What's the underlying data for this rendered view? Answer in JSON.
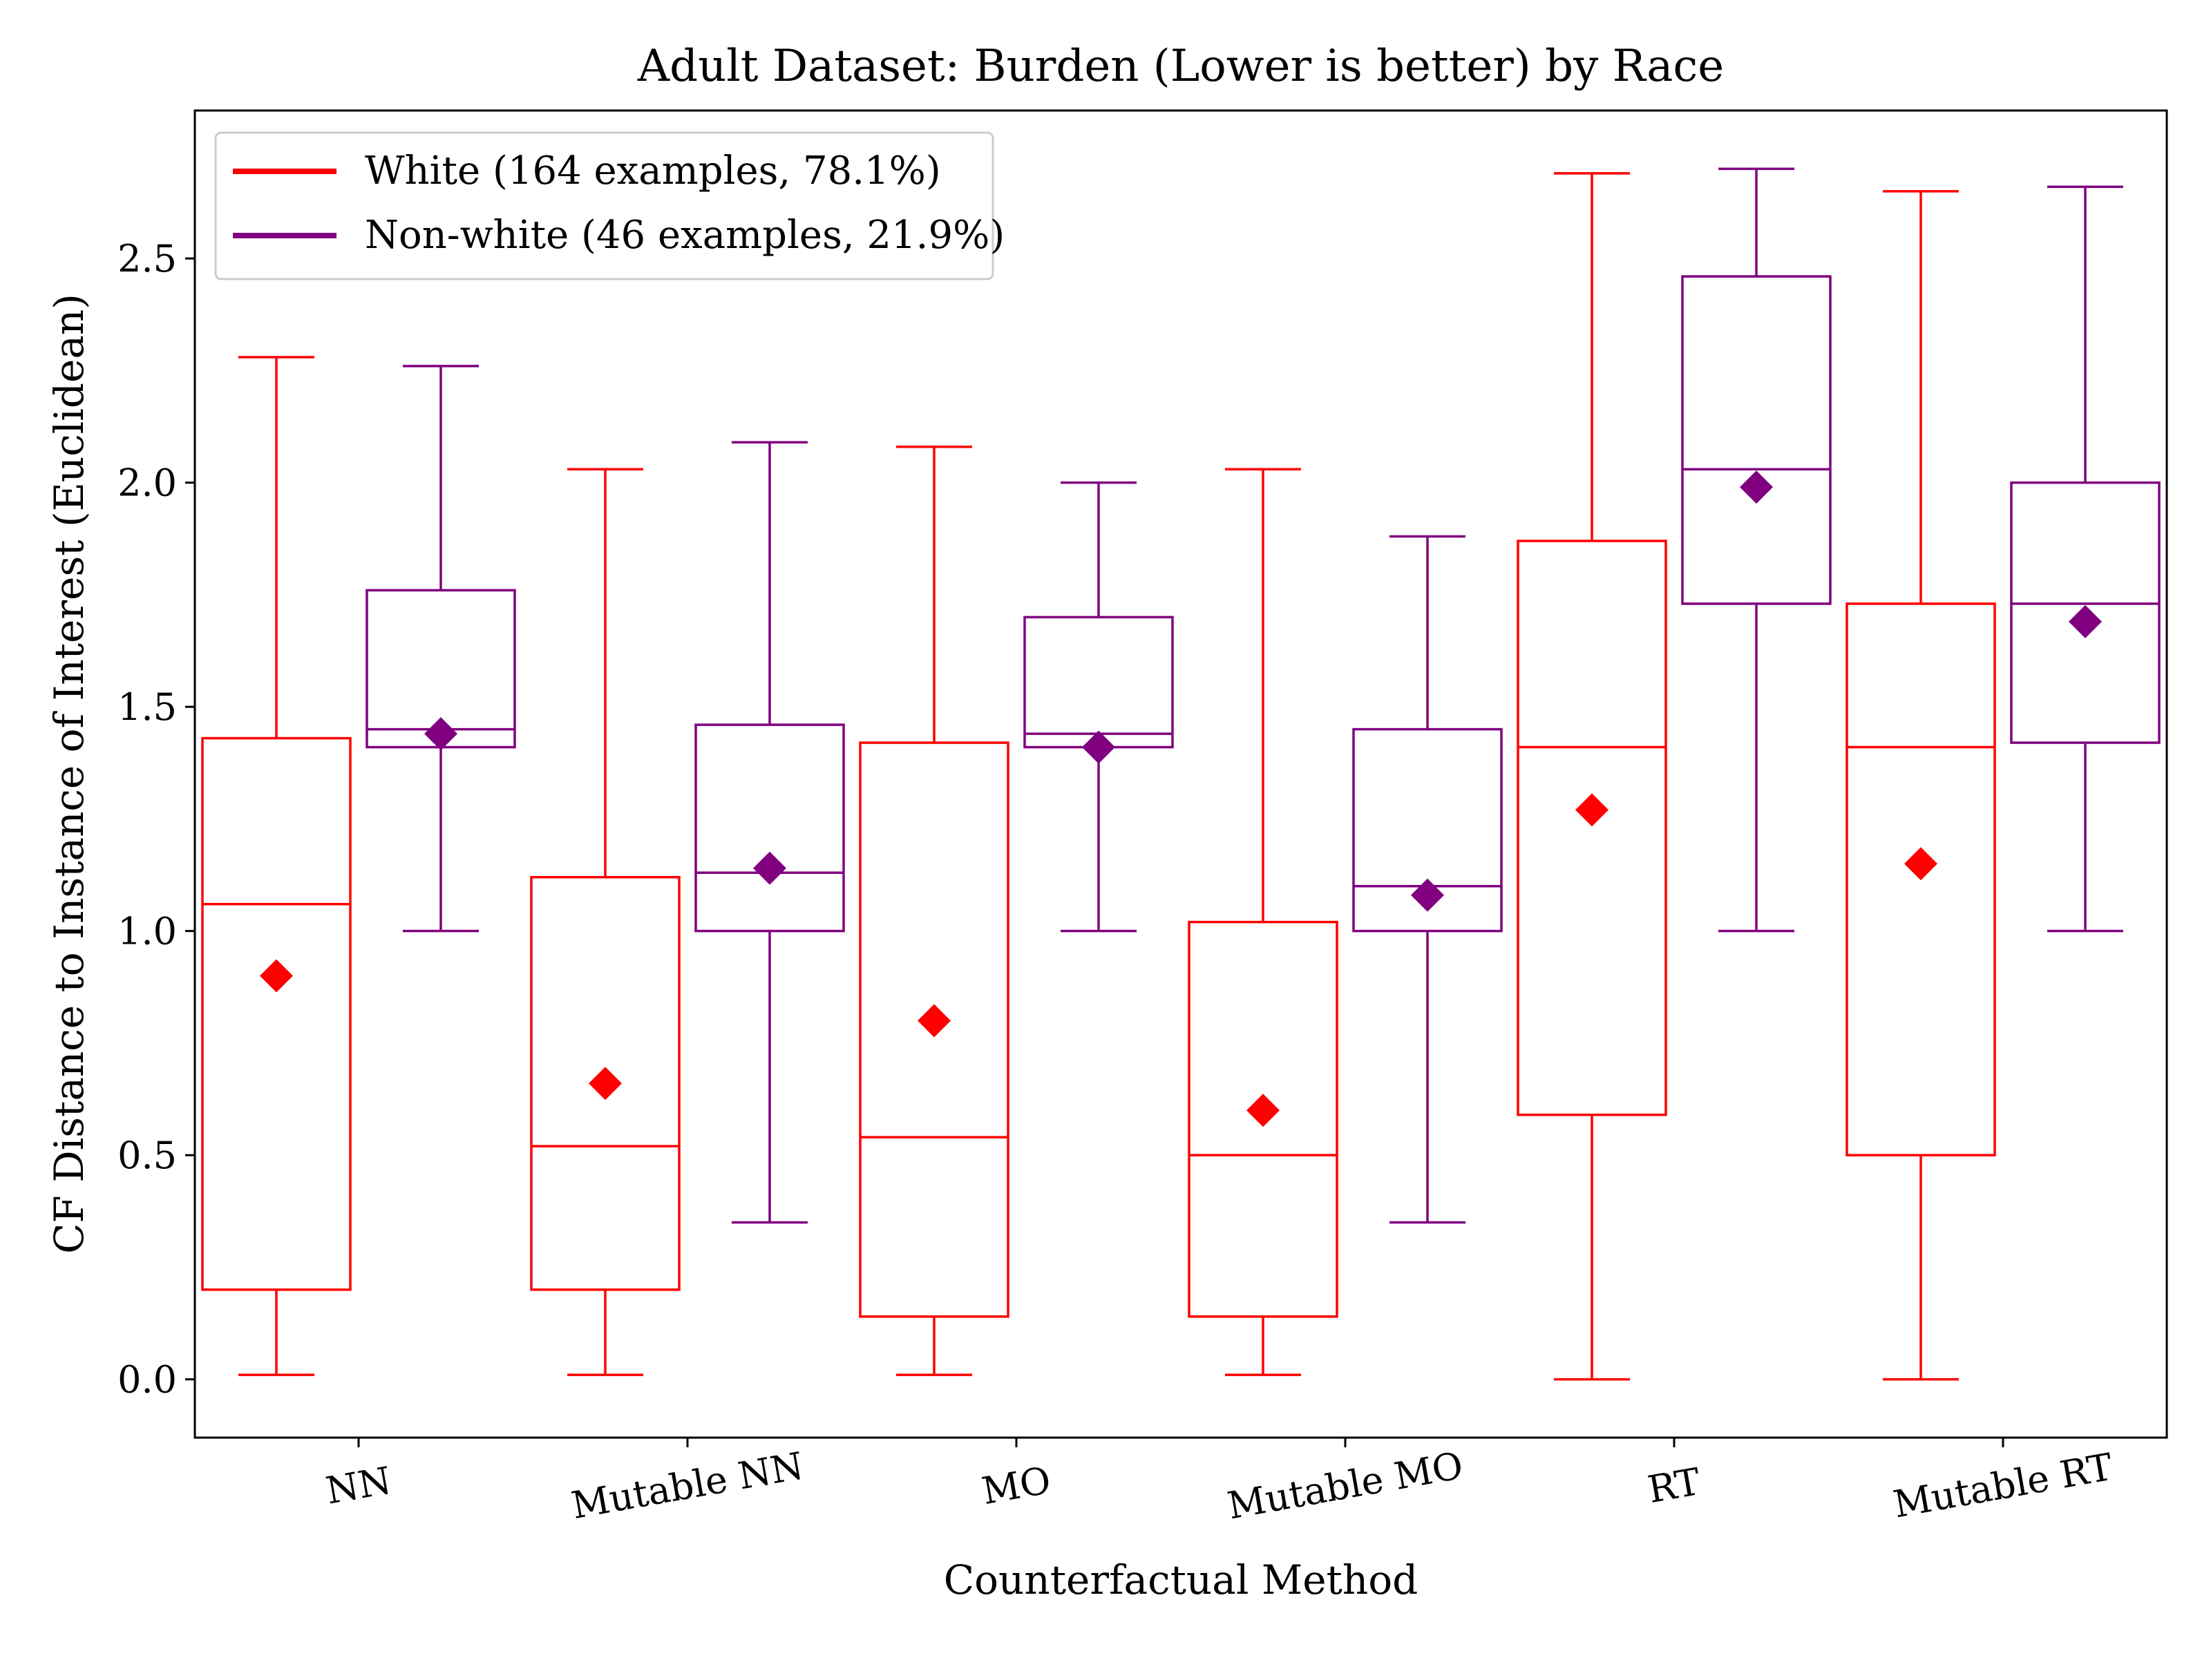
{
  "chart_data": {
    "type": "box",
    "title": "Adult Dataset: Burden (Lower is better) by Race",
    "xlabel": "Counterfactual Method",
    "ylabel": "CF Distance to Instance of Interest (Euclidean)",
    "ylim": [
      -0.13,
      2.83
    ],
    "yticks": [
      "0.0",
      "0.5",
      "1.0",
      "1.5",
      "2.0",
      "2.5"
    ],
    "categories": [
      "NN",
      "Mutable NN",
      "MO",
      "Mutable MO",
      "RT",
      "Mutable RT"
    ],
    "legend_position": "top-left",
    "series": [
      {
        "name": "White (164 examples, 78.1%)",
        "color": "#ff0000",
        "boxes": [
          {
            "whisker_low": 0.01,
            "q1": 0.2,
            "median": 1.06,
            "q3": 1.43,
            "whisker_high": 2.28,
            "mean": 0.9
          },
          {
            "whisker_low": 0.01,
            "q1": 0.2,
            "median": 0.52,
            "q3": 1.12,
            "whisker_high": 2.03,
            "mean": 0.66
          },
          {
            "whisker_low": 0.01,
            "q1": 0.14,
            "median": 0.54,
            "q3": 1.42,
            "whisker_high": 2.08,
            "mean": 0.8
          },
          {
            "whisker_low": 0.01,
            "q1": 0.14,
            "median": 0.5,
            "q3": 1.02,
            "whisker_high": 2.03,
            "mean": 0.6
          },
          {
            "whisker_low": 0.0,
            "q1": 0.59,
            "median": 1.41,
            "q3": 1.87,
            "whisker_high": 2.69,
            "mean": 1.27
          },
          {
            "whisker_low": 0.0,
            "q1": 0.5,
            "median": 1.41,
            "q3": 1.73,
            "whisker_high": 2.65,
            "mean": 1.15
          }
        ]
      },
      {
        "name": "Non-white (46 examples, 21.9%)",
        "color": "#800080",
        "boxes": [
          {
            "whisker_low": 1.0,
            "q1": 1.41,
            "median": 1.45,
            "q3": 1.76,
            "whisker_high": 2.26,
            "mean": 1.44
          },
          {
            "whisker_low": 0.35,
            "q1": 1.0,
            "median": 1.13,
            "q3": 1.46,
            "whisker_high": 2.09,
            "mean": 1.14
          },
          {
            "whisker_low": 1.0,
            "q1": 1.41,
            "median": 1.44,
            "q3": 1.7,
            "whisker_high": 2.0,
            "mean": 1.41
          },
          {
            "whisker_low": 0.35,
            "q1": 1.0,
            "median": 1.1,
            "q3": 1.45,
            "whisker_high": 1.88,
            "mean": 1.08
          },
          {
            "whisker_low": 1.0,
            "q1": 1.73,
            "median": 2.03,
            "q3": 2.46,
            "whisker_high": 2.7,
            "mean": 1.99
          },
          {
            "whisker_low": 1.0,
            "q1": 1.42,
            "median": 1.73,
            "q3": 2.0,
            "whisker_high": 2.66,
            "mean": 1.69
          }
        ]
      }
    ]
  }
}
